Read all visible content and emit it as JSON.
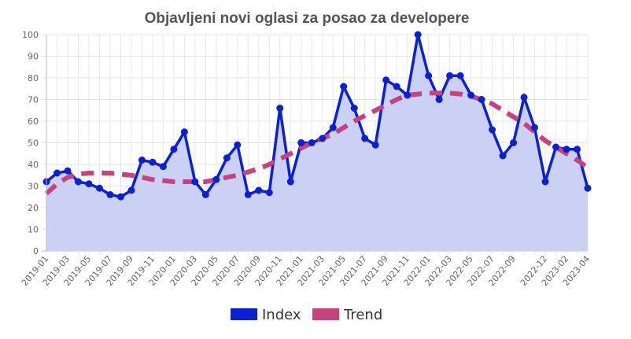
{
  "chart_data": {
    "type": "line",
    "title": "Objavljeni novi oglasi za posao za developere",
    "xlabel": "",
    "ylabel": "",
    "ylim": [
      0,
      100
    ],
    "y_ticks": [
      0,
      10,
      20,
      30,
      40,
      50,
      60,
      70,
      80,
      90,
      100
    ],
    "grid": true,
    "legend_position": "bottom",
    "x": [
      "2019-01",
      "2019-02",
      "2019-03",
      "2019-04",
      "2019-05",
      "2019-06",
      "2019-07",
      "2019-08",
      "2019-09",
      "2019-10",
      "2019-11",
      "2019-12",
      "2020-01",
      "2020-02",
      "2020-03",
      "2020-04",
      "2020-05",
      "2020-06",
      "2020-07",
      "2020-08",
      "2020-09",
      "2020-10",
      "2020-11",
      "2020-12",
      "2021-01",
      "2021-02",
      "2021-03",
      "2021-04",
      "2021-05",
      "2021-06",
      "2021-07",
      "2021-08",
      "2021-09",
      "2021-10",
      "2021-11",
      "2021-12",
      "2022-01",
      "2022-02",
      "2022-03",
      "2022-04",
      "2022-05",
      "2022-06",
      "2022-07",
      "2022-08",
      "2022-09",
      "2022-10",
      "2022-11",
      "2022-12",
      "2023-01",
      "2023-02",
      "2023-03",
      "2023-04"
    ],
    "x_tick_labels": [
      "2019-01",
      "2019-03",
      "2019-05",
      "2019-07",
      "2019-09",
      "2019-11",
      "2020-01",
      "2020-03",
      "2020-05",
      "2020-07",
      "2020-09",
      "2020-11",
      "2021-01",
      "2021-03",
      "2021-05",
      "2021-07",
      "2021-09",
      "2021-11",
      "2022-01",
      "2022-03",
      "2022-05",
      "2022-07",
      "2022-09",
      "2022-12",
      "2023-02",
      "2023-04"
    ],
    "series": [
      {
        "name": "Index",
        "color": "#0a1fd8",
        "fill": "#cbd0f5",
        "values": [
          32,
          36,
          37,
          32,
          31,
          29,
          26,
          25,
          28,
          42,
          41,
          39,
          47,
          55,
          32,
          26,
          33,
          43,
          49,
          26,
          28,
          27,
          66,
          32,
          50,
          50,
          52,
          57,
          76,
          66,
          52,
          49,
          79,
          76,
          72,
          100,
          81,
          70,
          81,
          81,
          72,
          70,
          56,
          44,
          50,
          71,
          57,
          32,
          48,
          47,
          47,
          29
        ]
      },
      {
        "name": "Trend",
        "color": "#c7427e",
        "values": [
          26.5,
          31,
          34,
          35.5,
          36,
          36,
          36,
          35.5,
          35,
          34,
          33,
          32.5,
          32,
          32,
          32,
          32,
          33,
          34,
          35,
          36.5,
          38,
          40,
          42.5,
          45,
          47.5,
          50,
          52,
          54,
          57,
          60,
          62.5,
          65,
          67.5,
          70,
          72,
          72.5,
          73,
          73,
          73,
          72.5,
          71.5,
          70,
          68,
          65,
          62,
          59,
          55,
          51,
          48,
          45,
          42,
          38.5
        ]
      }
    ]
  }
}
